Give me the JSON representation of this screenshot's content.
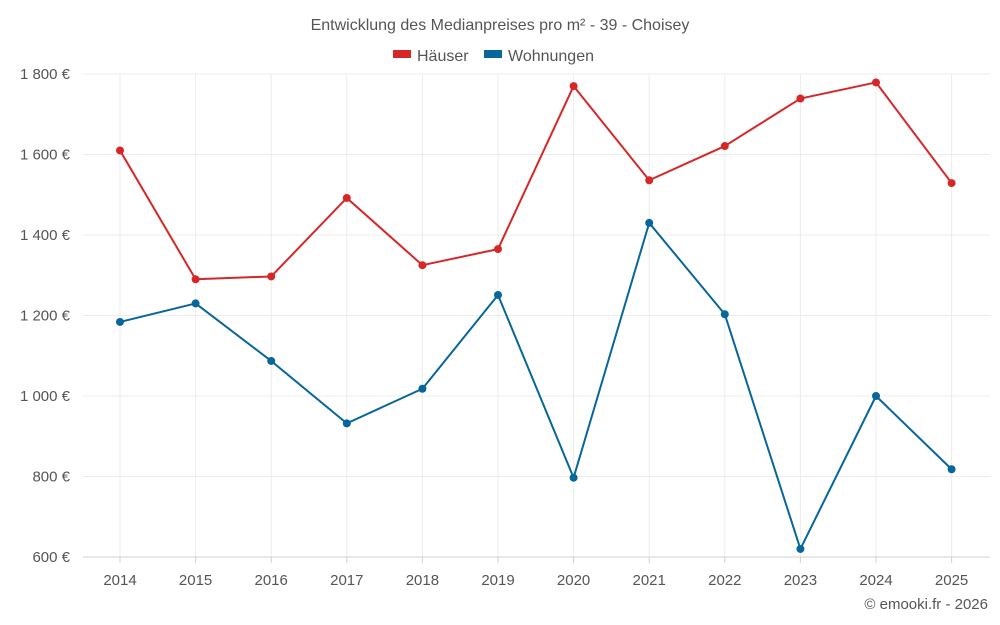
{
  "chart_data": {
    "type": "line",
    "title": "Entwicklung des Medianpreises pro m² - 39 - Choisey",
    "categories": [
      "2014",
      "2015",
      "2016",
      "2017",
      "2018",
      "2019",
      "2020",
      "2021",
      "2022",
      "2023",
      "2024",
      "2025"
    ],
    "series": [
      {
        "name": "Häuser",
        "color": "#d62728",
        "values": [
          1610,
          1290,
          1297,
          1492,
          1325,
          1365,
          1770,
          1536,
          1621,
          1739,
          1779,
          1529
        ]
      },
      {
        "name": "Wohnungen",
        "color": "#08669a",
        "values": [
          1184,
          1230,
          1087,
          932,
          1018,
          1251,
          797,
          1430,
          1203,
          620,
          1000,
          818
        ]
      }
    ],
    "ylim": [
      600,
      1800
    ],
    "yticks": [
      600,
      800,
      1000,
      1200,
      1400,
      1600,
      1800
    ],
    "ytick_labels": [
      "600 €",
      "800 €",
      "1 000 €",
      "1 200 €",
      "1 400 €",
      "1 600 €",
      "1 800 €"
    ],
    "xlabel": "",
    "ylabel": "",
    "legend_position": "top-center",
    "grid": true
  },
  "credit": "© emooki.fr - 2026"
}
